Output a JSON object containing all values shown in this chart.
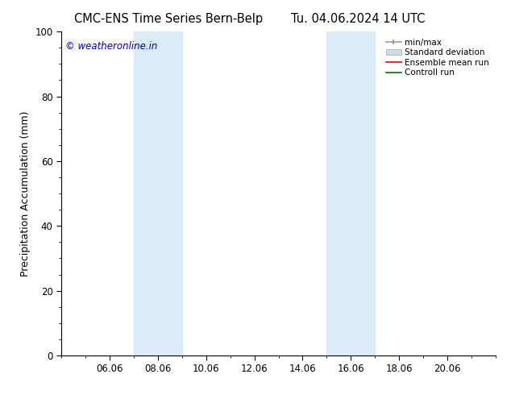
{
  "title_left": "CMC-ENS Time Series Bern-Belp",
  "title_right": "Tu. 04.06.2024 14 UTC",
  "ylabel": "Precipitation Accumulation (mm)",
  "ylim": [
    0,
    100
  ],
  "yticks": [
    0,
    20,
    40,
    60,
    80,
    100
  ],
  "xtick_labels": [
    "06.06",
    "08.06",
    "10.06",
    "12.06",
    "14.06",
    "16.06",
    "18.06",
    "20.06"
  ],
  "xtick_positions": [
    2,
    4,
    6,
    8,
    10,
    12,
    14,
    16
  ],
  "xlim": [
    0,
    18
  ],
  "shaded_bands": [
    {
      "x_start": 3.0,
      "x_end": 5.0
    },
    {
      "x_start": 11.0,
      "x_end": 13.0
    }
  ],
  "shaded_color": "#daeaf7",
  "background_color": "#ffffff",
  "watermark_text": "© weatheronline.in",
  "watermark_color": "#0000cc",
  "legend_items": [
    {
      "label": "min/max",
      "color": "#999999",
      "type": "errorbar"
    },
    {
      "label": "Standard deviation",
      "color": "#ccdde8",
      "type": "bar"
    },
    {
      "label": "Ensemble mean run",
      "color": "#ff0000",
      "type": "line"
    },
    {
      "label": "Controll run",
      "color": "#007700",
      "type": "line"
    }
  ],
  "title_fontsize": 10.5,
  "axis_fontsize": 9,
  "tick_fontsize": 8.5,
  "legend_fontsize": 7.5,
  "watermark_fontsize": 8.5
}
